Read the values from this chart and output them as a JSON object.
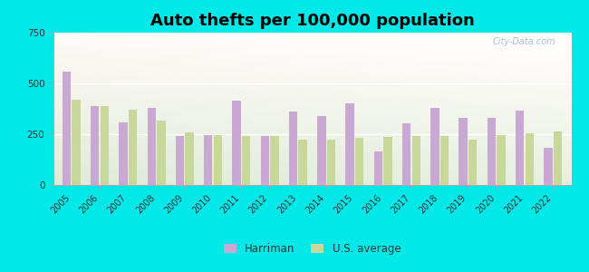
{
  "title": "Auto thefts per 100,000 population",
  "years": [
    2005,
    2006,
    2007,
    2008,
    2009,
    2010,
    2011,
    2012,
    2013,
    2014,
    2015,
    2016,
    2017,
    2018,
    2019,
    2020,
    2021,
    2022
  ],
  "harriman": [
    560,
    390,
    310,
    380,
    240,
    245,
    415,
    240,
    360,
    340,
    400,
    165,
    305,
    380,
    330,
    330,
    365,
    185
  ],
  "us_avg": [
    420,
    390,
    370,
    315,
    260,
    245,
    240,
    240,
    225,
    225,
    230,
    235,
    240,
    240,
    225,
    245,
    255,
    265
  ],
  "harriman_color": "#c9a8d4",
  "us_avg_color": "#c8d89a",
  "bg_outer": "#00e8e8",
  "ylim": [
    0,
    750
  ],
  "yticks": [
    0,
    250,
    500,
    750
  ],
  "title_fontsize": 13,
  "legend_harriman": "Harriman",
  "legend_us": "U.S. average",
  "watermark": "City-Data.com"
}
